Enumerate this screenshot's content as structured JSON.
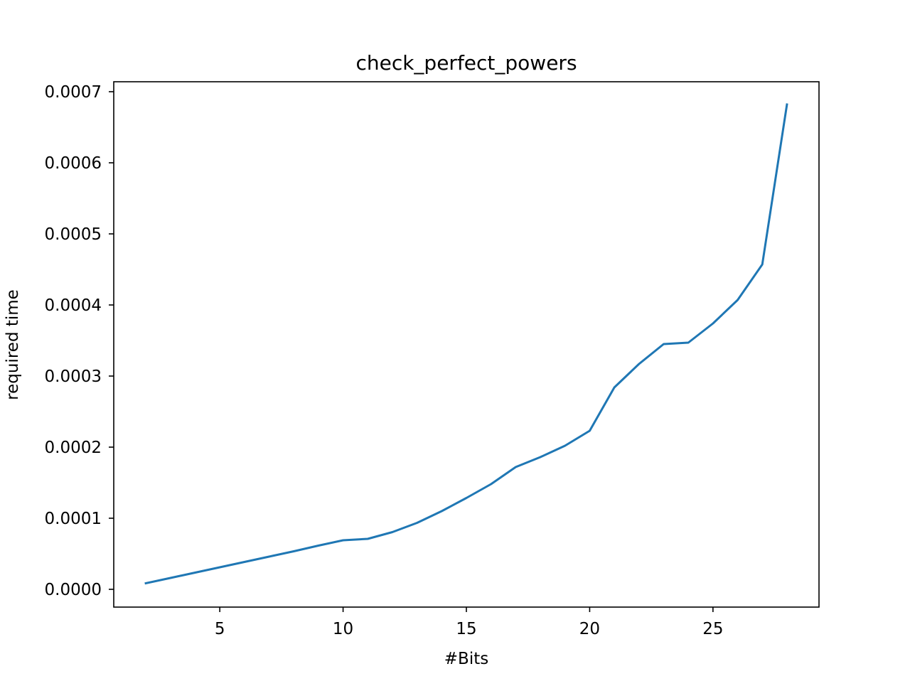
{
  "chart_data": {
    "type": "line",
    "title": "check_perfect_powers",
    "xlabel": "#Bits",
    "ylabel": "required time",
    "xlim": [
      0.7,
      29.3
    ],
    "ylim": [
      -2.5e-05,
      0.000714
    ],
    "xticks": [
      5,
      10,
      15,
      20,
      25
    ],
    "xtick_labels": [
      "5",
      "10",
      "15",
      "20",
      "25"
    ],
    "yticks": [
      0.0,
      0.0001,
      0.0002,
      0.0003,
      0.0004,
      0.0005,
      0.0006,
      0.0007
    ],
    "ytick_labels": [
      "0.0000",
      "0.0001",
      "0.0002",
      "0.0003",
      "0.0004",
      "0.0005",
      "0.0006",
      "0.0007"
    ],
    "grid": false,
    "legend": "none",
    "series": [
      {
        "color": "#1f77b4",
        "x": [
          2,
          3,
          4,
          5,
          6,
          7,
          8,
          9,
          10,
          11,
          12,
          13,
          14,
          15,
          16,
          17,
          18,
          19,
          20,
          21,
          22,
          23,
          24,
          25,
          26,
          27,
          28
        ],
        "y": [
          8.5e-06,
          1.6e-05,
          2.35e-05,
          3.1e-05,
          3.85e-05,
          4.6e-05,
          5.35e-05,
          6.15e-05,
          6.9e-05,
          7.1e-05,
          8.05e-05,
          9.35e-05,
          0.00011,
          0.0001285,
          0.000148,
          0.000172,
          0.000186,
          0.000202,
          0.000223,
          0.000284,
          0.000317,
          0.000345,
          0.000347,
          0.000374,
          0.000407,
          0.000457,
          0.000682
        ]
      }
    ]
  }
}
